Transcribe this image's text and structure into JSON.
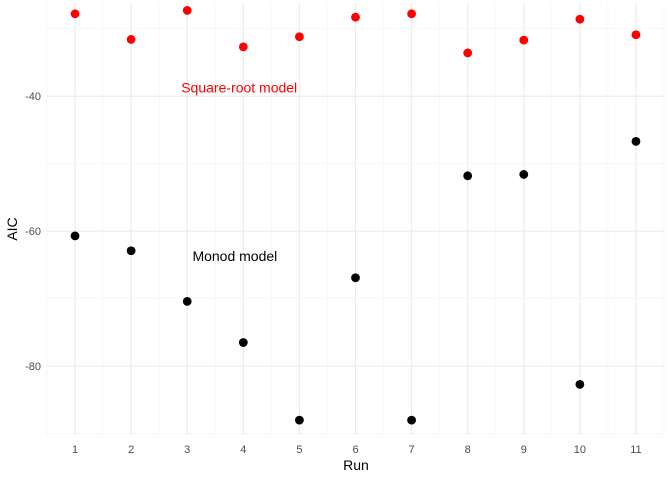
{
  "chart_data": {
    "type": "scatter",
    "title": "",
    "xlabel": "Run",
    "ylabel": "AIC",
    "x": [
      1,
      2,
      3,
      4,
      5,
      6,
      7,
      8,
      9,
      10,
      11
    ],
    "x_ticks": [
      "1",
      "2",
      "3",
      "4",
      "5",
      "6",
      "7",
      "8",
      "9",
      "10",
      "11"
    ],
    "y_ticks": [
      -40,
      -60,
      -80
    ],
    "xlim": [
      0.5,
      11.5
    ],
    "ylim": [
      -90.2,
      -26.2
    ],
    "grid": true,
    "legend": "none",
    "series": [
      {
        "name": "Square-root model",
        "color": "#ff0000",
        "values": [
          -27.8,
          -31.6,
          -27.3,
          -32.7,
          -31.2,
          -28.3,
          -27.8,
          -33.6,
          -31.7,
          -28.6,
          -30.9
        ]
      },
      {
        "name": "Monod model",
        "color": "#000000",
        "values": [
          -60.7,
          -62.9,
          -70.4,
          -76.5,
          -88.0,
          -66.9,
          -88.0,
          -51.8,
          -51.6,
          -82.7,
          -46.7
        ]
      }
    ],
    "annotations": [
      {
        "text": "Square-root model",
        "x": 3.0,
        "y": -38.7,
        "color": "#ff0000"
      },
      {
        "text": "Monod model",
        "x": 3.2,
        "y": -63.7,
        "color": "#000000"
      }
    ]
  }
}
